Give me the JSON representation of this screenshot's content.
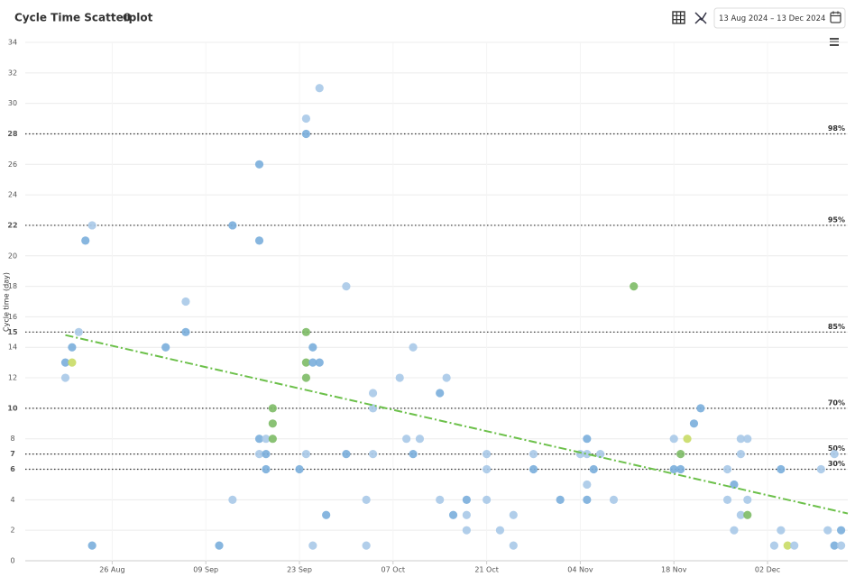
{
  "chart_data": {
    "type": "scatter",
    "title": "Cycle Time Scatterplot",
    "y_label": "Cycle time (day)",
    "date_range": "13 Aug 2024 – 13 Dec 2024",
    "xlim": [
      "2024-08-13",
      "2024-12-14"
    ],
    "xticks": [
      {
        "value": "2024-08-26",
        "label": "26 Aug"
      },
      {
        "value": "2024-09-09",
        "label": "09 Sep"
      },
      {
        "value": "2024-09-23",
        "label": "23 Sep"
      },
      {
        "value": "2024-10-07",
        "label": "07 Oct"
      },
      {
        "value": "2024-10-21",
        "label": "21 Oct"
      },
      {
        "value": "2024-11-04",
        "label": "04 Nov"
      },
      {
        "value": "2024-11-18",
        "label": "18 Nov"
      },
      {
        "value": "2024-12-02",
        "label": "02 Dec"
      }
    ],
    "ylim": [
      0,
      34
    ],
    "yticks": [
      0,
      2,
      4,
      6,
      7,
      8,
      10,
      12,
      14,
      15,
      16,
      18,
      20,
      22,
      24,
      26,
      28,
      30,
      32,
      34
    ],
    "grid": true,
    "percentiles": [
      {
        "name": "98%",
        "value": 28
      },
      {
        "name": "95%",
        "value": 22
      },
      {
        "name": "85%",
        "value": 15
      },
      {
        "name": "70%",
        "value": 10
      },
      {
        "name": "50%",
        "value": 7
      },
      {
        "name": "30%",
        "value": 6
      }
    ],
    "percentile_color": "#333333",
    "trend": {
      "x": [
        "2024-08-19",
        "2024-12-14"
      ],
      "values": [
        14.8,
        3.1
      ],
      "color": "#6cc04a"
    },
    "x": [
      "2024-08-19",
      "2024-08-20",
      "2024-08-19",
      "2024-08-20",
      "2024-08-21",
      "2024-08-22",
      "2024-08-23",
      "2024-08-23",
      "2024-09-03",
      "2024-09-06",
      "2024-09-06",
      "2024-09-11",
      "2024-09-13",
      "2024-09-13",
      "2024-09-17",
      "2024-09-17",
      "2024-09-17",
      "2024-09-17",
      "2024-09-18",
      "2024-09-18",
      "2024-09-18",
      "2024-09-19",
      "2024-09-19",
      "2024-09-19",
      "2024-09-23",
      "2024-09-24",
      "2024-09-24",
      "2024-09-24",
      "2024-09-24",
      "2024-09-24",
      "2024-09-24",
      "2024-09-25",
      "2024-09-25",
      "2024-09-26",
      "2024-09-26",
      "2024-09-25",
      "2024-09-27",
      "2024-09-30",
      "2024-09-30",
      "2024-10-03",
      "2024-10-03",
      "2024-10-04",
      "2024-10-04",
      "2024-10-04",
      "2024-10-08",
      "2024-10-09",
      "2024-10-10",
      "2024-10-10",
      "2024-10-11",
      "2024-10-14",
      "2024-10-14",
      "2024-10-15",
      "2024-10-16",
      "2024-10-18",
      "2024-10-18",
      "2024-10-18",
      "2024-10-21",
      "2024-10-21",
      "2024-10-21",
      "2024-10-23",
      "2024-10-25",
      "2024-10-25",
      "2024-10-28",
      "2024-10-28",
      "2024-11-01",
      "2024-11-04",
      "2024-11-05",
      "2024-11-05",
      "2024-11-05",
      "2024-11-05",
      "2024-11-06",
      "2024-11-07",
      "2024-11-09",
      "2024-11-12",
      "2024-11-18",
      "2024-11-18",
      "2024-11-19",
      "2024-11-19",
      "2024-11-20",
      "2024-11-21",
      "2024-11-22",
      "2024-11-26",
      "2024-11-26",
      "2024-11-27",
      "2024-11-27",
      "2024-11-28",
      "2024-11-28",
      "2024-11-28",
      "2024-11-29",
      "2024-11-29",
      "2024-11-29",
      "2024-12-03",
      "2024-12-04",
      "2024-12-04",
      "2024-12-05",
      "2024-12-06",
      "2024-12-10",
      "2024-12-11",
      "2024-12-12",
      "2024-12-12",
      "2024-12-13",
      "2024-12-13"
    ],
    "values": [
      13,
      13,
      12,
      14,
      15,
      21,
      22,
      1,
      14,
      15,
      17,
      1,
      22,
      4,
      26,
      21,
      8,
      7,
      8,
      7,
      6,
      10,
      9,
      8,
      6,
      29,
      28,
      15,
      13,
      12,
      7,
      14,
      13,
      13,
      31,
      1,
      3,
      18,
      7,
      4,
      1,
      11,
      10,
      7,
      12,
      8,
      14,
      7,
      8,
      11,
      4,
      12,
      3,
      4,
      3,
      2,
      7,
      6,
      4,
      2,
      3,
      1,
      7,
      6,
      4,
      7,
      8,
      7,
      5,
      4,
      6,
      7,
      4,
      18,
      8,
      6,
      7,
      6,
      8,
      9,
      10,
      6,
      4,
      5,
      2,
      8,
      7,
      3,
      8,
      4,
      3,
      1,
      6,
      2,
      1,
      1,
      6,
      2,
      7,
      1,
      2,
      1
    ],
    "colors": [
      "#7aaedb",
      "#c9db66",
      "#a8c9e8",
      "#7aaedb",
      "#a8c9e8",
      "#7aaedb",
      "#a8c9e8",
      "#7aaedb",
      "#7aaedb",
      "#7aaedb",
      "#a8c9e8",
      "#7aaedb",
      "#7aaedb",
      "#a8c9e8",
      "#7aaedb",
      "#7aaedb",
      "#7aaedb",
      "#a8c9e8",
      "#a8c9e8",
      "#7aaedb",
      "#7aaedb",
      "#7dbb66",
      "#7dbb66",
      "#7dbb66",
      "#7aaedb",
      "#a8c9e8",
      "#7aaedb",
      "#7dbb66",
      "#7dbb66",
      "#7dbb66",
      "#a8c9e8",
      "#7aaedb",
      "#7aaedb",
      "#7aaedb",
      "#a8c9e8",
      "#a8c9e8",
      "#7aaedb",
      "#a8c9e8",
      "#7aaedb",
      "#a8c9e8",
      "#a8c9e8",
      "#a8c9e8",
      "#a8c9e8",
      "#a8c9e8",
      "#a8c9e8",
      "#a8c9e8",
      "#a8c9e8",
      "#7aaedb",
      "#a8c9e8",
      "#7aaedb",
      "#a8c9e8",
      "#a8c9e8",
      "#7aaedb",
      "#7aaedb",
      "#a8c9e8",
      "#a8c9e8",
      "#a8c9e8",
      "#a8c9e8",
      "#a8c9e8",
      "#a8c9e8",
      "#a8c9e8",
      "#a8c9e8",
      "#a8c9e8",
      "#7aaedb",
      "#7aaedb",
      "#a8c9e8",
      "#7aaedb",
      "#a8c9e8",
      "#a8c9e8",
      "#7aaedb",
      "#7aaedb",
      "#a8c9e8",
      "#a8c9e8",
      "#7dbb66",
      "#a8c9e8",
      "#7aaedb",
      "#7dbb66",
      "#7aaedb",
      "#c9db66",
      "#7aaedb",
      "#7aaedb",
      "#a8c9e8",
      "#a8c9e8",
      "#7aaedb",
      "#a8c9e8",
      "#a8c9e8",
      "#a8c9e8",
      "#a8c9e8",
      "#a8c9e8",
      "#a8c9e8",
      "#7dbb66",
      "#a8c9e8",
      "#7aaedb",
      "#a8c9e8",
      "#c9db66",
      "#a8c9e8",
      "#a8c9e8",
      "#a8c9e8",
      "#a8c9e8",
      "#7aaedb",
      "#7aaedb",
      "#a8c9e8"
    ]
  }
}
